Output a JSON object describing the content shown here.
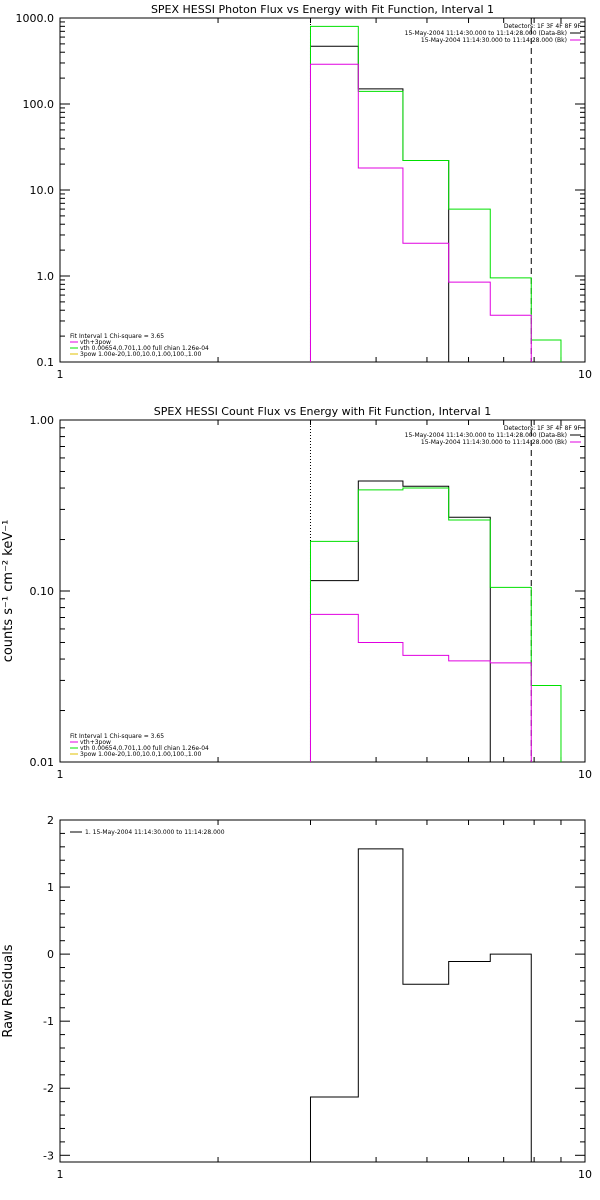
{
  "colors": {
    "black": "#000000",
    "magenta": "#e000e0",
    "green": "#00e000",
    "yellow": "#e0c000"
  },
  "chart_data": [
    {
      "type": "line",
      "title": "SPEX HESSI Photon Flux vs Energy with Fit Function, Interval 1",
      "xlabel": "",
      "ylabel": "",
      "xscale": "log",
      "yscale": "log",
      "xlim": [
        1,
        10
      ],
      "ylim": [
        0.1,
        1000
      ],
      "xticks": [
        {
          "v": 1,
          "label": "1"
        },
        {
          "v": 10,
          "label": "10"
        }
      ],
      "yticks": [
        {
          "v": 1000,
          "label": "1000.0"
        },
        {
          "v": 100,
          "label": "100.0"
        },
        {
          "v": 10,
          "label": "10.0"
        },
        {
          "v": 1,
          "label": "1.0"
        },
        {
          "v": 0.1,
          "label": "0.1"
        }
      ],
      "vlines": [
        {
          "x": 3.0,
          "style": "dotted",
          "color": "#000000"
        },
        {
          "x": 7.9,
          "style": "dashed",
          "color": "#000000"
        }
      ],
      "series": [
        {
          "color": "#000000",
          "edges": [
            3.0,
            3.7,
            4.5,
            5.5,
            6.6,
            7.9
          ],
          "values": [
            470,
            150,
            22,
            null,
            null
          ]
        },
        {
          "color": "#00e000",
          "edges": [
            3.0,
            3.7,
            4.5,
            5.5,
            6.6,
            7.9,
            9.0
          ],
          "values": [
            800,
            140,
            22,
            6.0,
            0.95,
            0.18
          ]
        },
        {
          "color": "#e000e0",
          "edges": [
            3.0,
            3.7,
            4.5,
            5.5,
            6.6,
            7.9
          ],
          "values": [
            290,
            18,
            2.4,
            0.85,
            0.35
          ]
        }
      ],
      "top_legend": {
        "header": "Detectors: 1F 3F 4F 8F 9F",
        "items": [
          {
            "text": "15-May-2004 11:14:30.000 to 11:14:28.000 (Data-Bk)",
            "color": "#000000"
          },
          {
            "text": "15-May-2004 11:14:30.000 to 11:14:28.000 (Bk)",
            "color": "#e000e0"
          }
        ]
      },
      "bottom_legend": {
        "header": "Fit Interval 1    Chi-square = 3.65",
        "items": [
          {
            "text": "vth+3pow",
            "color": "#e000e0"
          },
          {
            "text": "vth 0.00654,0.701,1.00   full chian 1.26e-04",
            "color": "#00e000"
          },
          {
            "text": "3pow 1.00e-20,1.00,10.0,1.00,100.,1.00",
            "color": "#e0c000"
          }
        ]
      }
    },
    {
      "type": "line",
      "title": "SPEX HESSI Count Flux vs Energy with Fit Function, Interval 1",
      "xlabel": "",
      "ylabel": "counts s⁻¹ cm⁻² keV⁻¹",
      "xscale": "log",
      "yscale": "log",
      "xlim": [
        1,
        10
      ],
      "ylim": [
        0.01,
        1.0
      ],
      "xticks": [
        {
          "v": 1,
          "label": "1"
        },
        {
          "v": 10,
          "label": "10"
        }
      ],
      "yticks": [
        {
          "v": 1.0,
          "label": "1.00"
        },
        {
          "v": 0.1,
          "label": "0.10"
        },
        {
          "v": 0.01,
          "label": "0.01"
        }
      ],
      "vlines": [
        {
          "x": 3.0,
          "style": "dotted",
          "color": "#000000"
        },
        {
          "x": 7.9,
          "style": "dashed",
          "color": "#000000"
        }
      ],
      "series": [
        {
          "color": "#000000",
          "edges": [
            3.0,
            3.7,
            4.5,
            5.5,
            6.6,
            7.9
          ],
          "values": [
            0.115,
            0.44,
            0.41,
            0.27,
            null
          ]
        },
        {
          "color": "#00e000",
          "edges": [
            3.0,
            3.7,
            4.5,
            5.5,
            6.6,
            7.9,
            9.0
          ],
          "values": [
            0.195,
            0.39,
            0.4,
            0.26,
            0.105,
            0.028
          ]
        },
        {
          "color": "#e000e0",
          "edges": [
            3.0,
            3.7,
            4.5,
            5.5,
            6.6,
            7.9
          ],
          "values": [
            0.073,
            0.05,
            0.042,
            0.039,
            0.038
          ]
        }
      ],
      "top_legend": {
        "header": "Detectors: 1F 3F 4F 8F 9F",
        "items": [
          {
            "text": "15-May-2004 11:14:30.000 to 11:14:28.000 (Data-Bk)",
            "color": "#000000"
          },
          {
            "text": "15-May-2004 11:14:30.000 to 11:14:28.000 (Bk)",
            "color": "#e000e0"
          }
        ]
      },
      "bottom_legend": {
        "header": "Fit Interval 1    Chi-square = 3.65",
        "items": [
          {
            "text": "vth+3pow",
            "color": "#e000e0"
          },
          {
            "text": "vth 0.00654,0.701,1.00   full chian 1.26e-04",
            "color": "#00e000"
          },
          {
            "text": "3pow 1.00e-20,1.00,10.0,1.00,100.,1.00",
            "color": "#e0c000"
          }
        ]
      }
    },
    {
      "type": "line",
      "title": "",
      "xlabel": "",
      "ylabel": "Raw Residuals",
      "xscale": "log",
      "yscale": "linear",
      "xlim": [
        1,
        10
      ],
      "ylim": [
        -3.1,
        2.0
      ],
      "xticks": [
        {
          "v": 1,
          "label": "1"
        },
        {
          "v": 10,
          "label": "10"
        }
      ],
      "yticks": [
        {
          "v": 2,
          "label": "2"
        },
        {
          "v": 1,
          "label": "1"
        },
        {
          "v": 0,
          "label": "0"
        },
        {
          "v": -1,
          "label": "-1"
        },
        {
          "v": -2,
          "label": "-2"
        },
        {
          "v": -3,
          "label": "-3"
        }
      ],
      "vlines": [],
      "series": [
        {
          "color": "#000000",
          "closed": true,
          "edges": [
            3.0,
            3.7,
            4.5,
            5.5,
            6.6,
            7.9
          ],
          "values": [
            -2.13,
            1.57,
            -0.45,
            -0.11,
            0.0
          ]
        }
      ],
      "top_legend": {
        "header": "",
        "items": [
          {
            "text": "1. 15-May-2004 11:14:30.000 to 11:14:28.000",
            "color": "#000000"
          }
        ]
      },
      "bottom_legend": {
        "header": "",
        "items": []
      }
    }
  ]
}
